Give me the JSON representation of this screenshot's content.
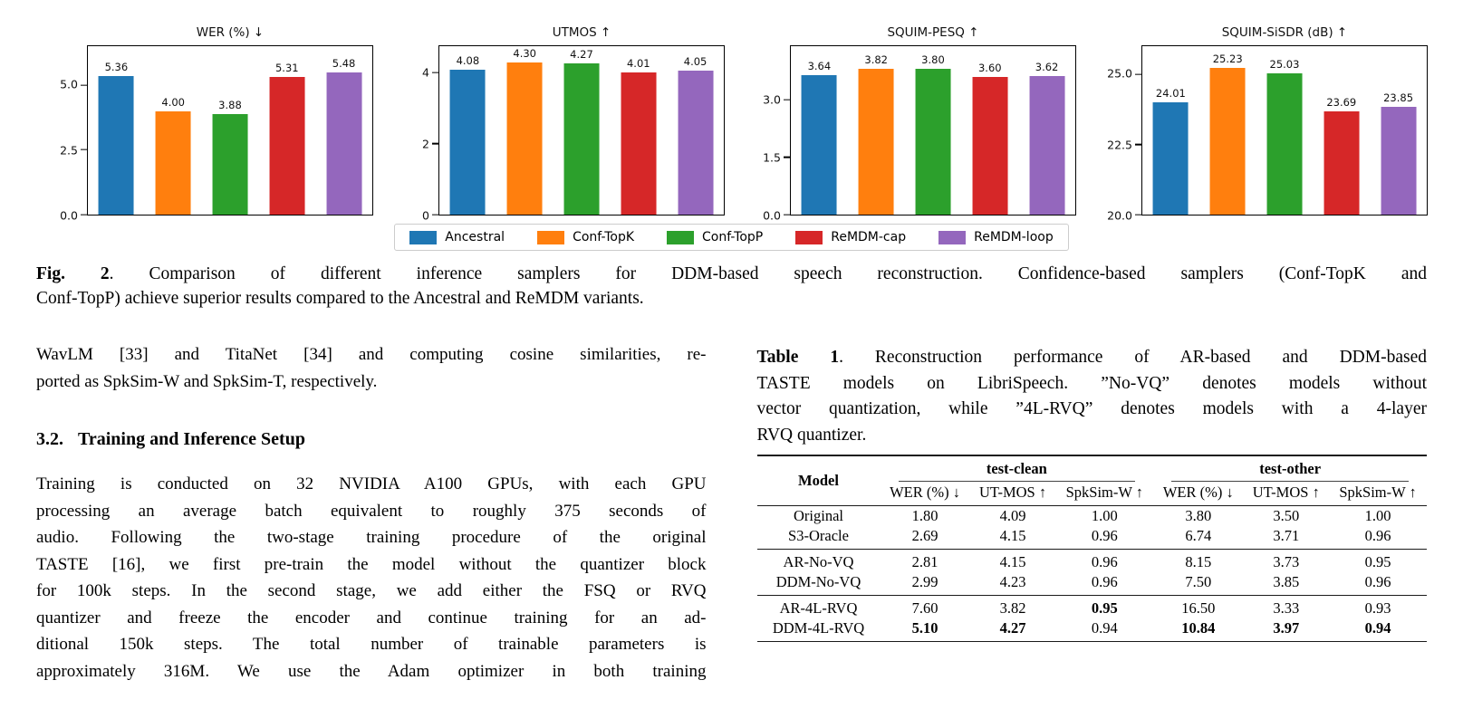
{
  "figure": {
    "caption": {
      "prefix": "Fig. 2",
      "line1_rest": ".  Comparison of different inference samplers for DDM-based speech reconstruction.  Confidence-based samplers (Conf-TopK and",
      "line2": "Conf-TopP) achieve superior results compared to the Ancestral and ReMDM variants."
    },
    "legend": {
      "items": [
        {
          "label": "Ancestral",
          "color": "#1f77b4"
        },
        {
          "label": "Conf-TopK",
          "color": "#ff7f0e"
        },
        {
          "label": "Conf-TopP",
          "color": "#2ca02c"
        },
        {
          "label": "ReMDM-cap",
          "color": "#d62728"
        },
        {
          "label": "ReMDM-loop",
          "color": "#9467bd"
        }
      ]
    }
  },
  "chart_data": [
    {
      "type": "bar",
      "title": "WER (%) ↓",
      "categories": [
        "Ancestral",
        "Conf-TopK",
        "Conf-TopP",
        "ReMDM-cap",
        "ReMDM-loop"
      ],
      "values": [
        5.36,
        4.0,
        3.88,
        5.31,
        5.48
      ],
      "labels": [
        "5.36",
        "4.00",
        "3.88",
        "5.31",
        "5.48"
      ],
      "ylim": [
        0,
        6.5
      ],
      "yticks": [
        0,
        2.5,
        5
      ],
      "ytick_labels": [
        "0.0",
        "2.5",
        "5.0"
      ],
      "grid": false,
      "legend_position": "shared-below"
    },
    {
      "type": "bar",
      "title": "UTMOS ↑",
      "categories": [
        "Ancestral",
        "Conf-TopK",
        "Conf-TopP",
        "ReMDM-cap",
        "ReMDM-loop"
      ],
      "values": [
        4.08,
        4.3,
        4.27,
        4.01,
        4.05
      ],
      "labels": [
        "4.08",
        "4.30",
        "4.27",
        "4.01",
        "4.05"
      ],
      "ylim": [
        0,
        4.75
      ],
      "yticks": [
        0,
        2,
        4
      ],
      "ytick_labels": [
        "0",
        "2",
        "4"
      ],
      "grid": false,
      "legend_position": "shared-below"
    },
    {
      "type": "bar",
      "title": "SQUIM-PESQ ↑",
      "categories": [
        "Ancestral",
        "Conf-TopK",
        "Conf-TopP",
        "ReMDM-cap",
        "ReMDM-loop"
      ],
      "values": [
        3.64,
        3.82,
        3.8,
        3.6,
        3.62
      ],
      "labels": [
        "3.64",
        "3.82",
        "3.80",
        "3.60",
        "3.62"
      ],
      "ylim": [
        0,
        4.4
      ],
      "yticks": [
        0,
        1.5,
        3
      ],
      "ytick_labels": [
        "0.0",
        "1.5",
        "3.0"
      ],
      "grid": false,
      "legend_position": "shared-below"
    },
    {
      "type": "bar",
      "title": "SQUIM-SiSDR (dB) ↑",
      "categories": [
        "Ancestral",
        "Conf-TopK",
        "Conf-TopP",
        "ReMDM-cap",
        "ReMDM-loop"
      ],
      "values": [
        24.01,
        25.23,
        25.03,
        23.69,
        23.85
      ],
      "labels": [
        "24.01",
        "25.23",
        "25.03",
        "23.69",
        "23.85"
      ],
      "ylim": [
        20,
        26
      ],
      "yticks": [
        20,
        22.5,
        25
      ],
      "ytick_labels": [
        "20.0",
        "22.5",
        "25.0"
      ],
      "grid": false,
      "legend_position": "shared-below"
    }
  ],
  "left_column": {
    "paragraph1_lines": [
      "WavLM [33] and TitaNet [34] and computing cosine similarities, re-",
      "ported as SpkSim-W and SpkSim-T, respectively."
    ],
    "heading_number": "3.2.",
    "heading_title": "Training and Inference Setup",
    "paragraph2_lines": [
      "Training is conducted on 32 NVIDIA A100 GPUs, with each GPU",
      "processing an average batch equivalent to roughly 375 seconds of",
      "audio.  Following the two-stage training procedure of the original",
      "TASTE [16], we first pre-train the model without the quantizer block",
      "for 100k steps.  In the second stage, we add either the FSQ or RVQ",
      "quantizer and freeze the encoder and continue training for an ad-",
      "ditional 150k steps.  The total number of trainable parameters is",
      "approximately 316M. We use the Adam optimizer in both training"
    ]
  },
  "table1": {
    "caption": {
      "prefix": "Table 1",
      "line1_rest": ". Reconstruction performance of AR-based and DDM-based",
      "lines": [
        "TASTE models on LibriSpeech. ”No-VQ” denotes models without",
        "vector quantization, while ”4L-RVQ” denotes models with a 4-layer",
        "RVQ quantizer."
      ]
    },
    "model_header": "Model",
    "group_headers": [
      "test-clean",
      "test-other"
    ],
    "sub_headers": [
      "WER (%) ↓",
      "UT-MOS ↑",
      "SpkSim-W ↑",
      "WER (%) ↓",
      "UT-MOS ↑",
      "SpkSim-W ↑"
    ],
    "sections": [
      {
        "rows": [
          {
            "model": "Original",
            "values": [
              "1.80",
              "4.09",
              "1.00",
              "3.80",
              "3.50",
              "1.00"
            ],
            "bold": [
              false,
              false,
              false,
              false,
              false,
              false
            ]
          },
          {
            "model": "S3-Oracle",
            "values": [
              "2.69",
              "4.15",
              "0.96",
              "6.74",
              "3.71",
              "0.96"
            ],
            "bold": [
              false,
              false,
              false,
              false,
              false,
              false
            ]
          }
        ]
      },
      {
        "rows": [
          {
            "model": "AR-No-VQ",
            "values": [
              "2.81",
              "4.15",
              "0.96",
              "8.15",
              "3.73",
              "0.95"
            ],
            "bold": [
              false,
              false,
              false,
              false,
              false,
              false
            ]
          },
          {
            "model": "DDM-No-VQ",
            "values": [
              "2.99",
              "4.23",
              "0.96",
              "7.50",
              "3.85",
              "0.96"
            ],
            "bold": [
              false,
              false,
              false,
              false,
              false,
              false
            ]
          }
        ]
      },
      {
        "rows": [
          {
            "model": "AR-4L-RVQ",
            "values": [
              "7.60",
              "3.82",
              "0.95",
              "16.50",
              "3.33",
              "0.93"
            ],
            "bold": [
              false,
              false,
              true,
              false,
              false,
              false
            ]
          },
          {
            "model": "DDM-4L-RVQ",
            "values": [
              "5.10",
              "4.27",
              "0.94",
              "10.84",
              "3.97",
              "0.94"
            ],
            "bold": [
              true,
              true,
              false,
              true,
              true,
              true
            ]
          }
        ]
      }
    ]
  }
}
